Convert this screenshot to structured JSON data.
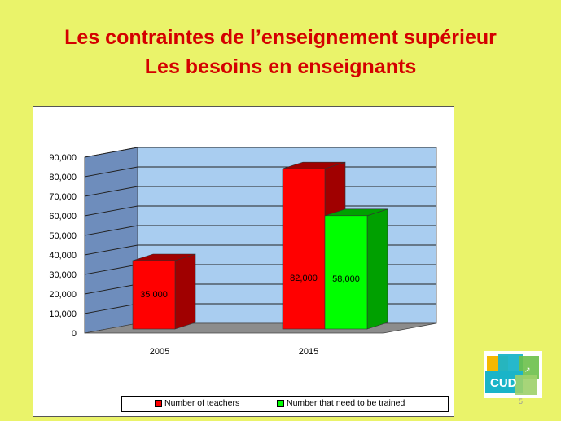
{
  "slide": {
    "title_line1": "Les contraintes de l’enseignement supérieur",
    "title_line2": "Les besoins en enseignants",
    "slide_number": "5",
    "logo_text": "CUD"
  },
  "colors": {
    "background": "#EAF36A",
    "title": "#D40000",
    "wall": "#A9CDF0",
    "side_wall": "#6E8DBC",
    "floor": "#8C8C8C",
    "teachers": "#FF0000",
    "teachers_dark": "#A00000",
    "trained": "#00FF00",
    "trained_dark": "#00A000"
  },
  "chart_data": {
    "type": "bar",
    "categories": [
      "2005",
      "2015"
    ],
    "series": [
      {
        "name": "Number of teachers",
        "values": [
          35000,
          82000
        ],
        "labels": [
          "35 000",
          "82,000"
        ]
      },
      {
        "name": "Number that need to be trained",
        "values": [
          null,
          58000
        ],
        "labels": [
          "",
          "58,000"
        ]
      }
    ],
    "y_ticks": [
      "0",
      "10,000",
      "20,000",
      "30,000",
      "40,000",
      "50,000",
      "60,000",
      "70,000",
      "80,000",
      "90,000"
    ],
    "ylim": [
      0,
      90000
    ],
    "grid": true,
    "legend_position": "bottom",
    "style": "3d"
  }
}
